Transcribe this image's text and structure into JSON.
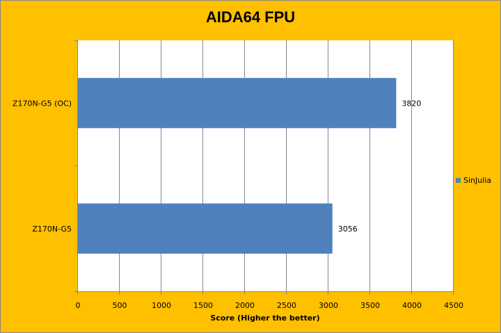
{
  "chart_data": {
    "type": "bar",
    "orientation": "horizontal",
    "title": "AIDA64 FPU",
    "categories": [
      "Z170N-G5 (OC)",
      "Z170N-G5"
    ],
    "series": [
      {
        "name": "SinJulia",
        "values": [
          3820,
          3056
        ],
        "color": "#4F81BD"
      }
    ],
    "xlabel": "Score (Higher the better)",
    "ylabel": "",
    "xlim": [
      0,
      4500
    ],
    "xticks": [
      0,
      500,
      1000,
      1500,
      2000,
      2500,
      3000,
      3500,
      4000,
      4500
    ],
    "grid": true,
    "legend": "right",
    "data_labels": true,
    "background": "#FFC000"
  }
}
